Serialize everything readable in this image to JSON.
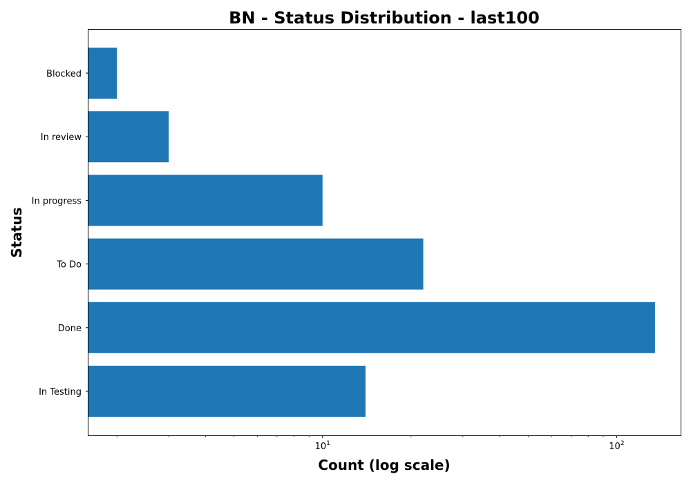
{
  "chart_data": {
    "type": "bar",
    "orientation": "horizontal",
    "title": "BN - Status Distribution - last100",
    "xlabel": "Count (log scale)",
    "ylabel": "Status",
    "xscale": "log",
    "xlim": [
      1.6,
      165
    ],
    "categories": [
      "Blocked",
      "In review",
      "In progress",
      "To Do",
      "Done",
      "In Testing"
    ],
    "values": [
      2,
      3,
      10,
      22,
      135,
      14
    ],
    "x_ticks": [
      {
        "value": 10,
        "base": "10",
        "exponent": "1"
      },
      {
        "value": 100,
        "base": "10",
        "exponent": "2"
      }
    ],
    "bar_color": "#1f77b4",
    "grid": false,
    "legend": "none"
  }
}
